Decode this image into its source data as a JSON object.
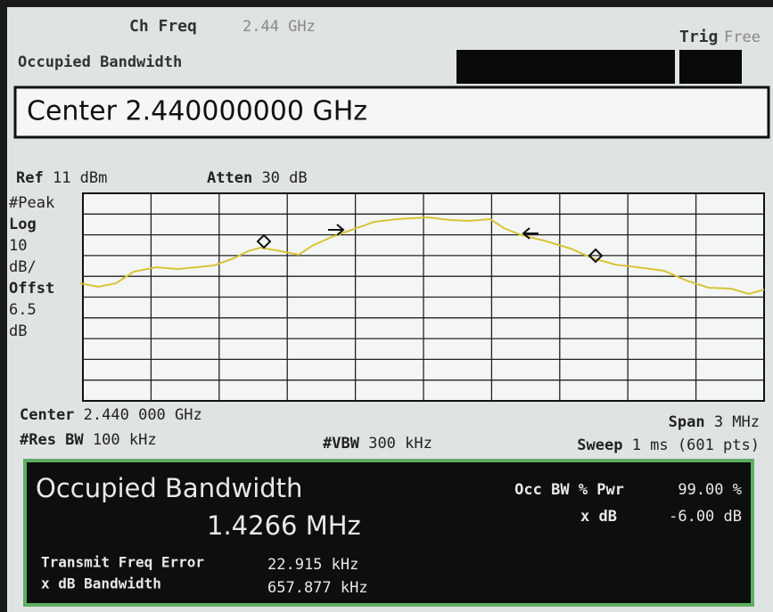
{
  "header": {
    "ch_freq_label": "Ch Freq",
    "ch_freq_value": "2.44 GHz",
    "mode": "Occupied Bandwidth",
    "trig_label": "Trig",
    "trig_value": "Free"
  },
  "center_line": "Center 2.440000000 GHz",
  "display": {
    "ref_label": "Ref",
    "ref_value": "11 dBm",
    "atten_label": "Atten",
    "atten_value": "30 dB",
    "side_labels": [
      "#Peak",
      "Log",
      "10",
      "dB/",
      "Offst",
      "6.5",
      "dB"
    ]
  },
  "footer": {
    "center_label": "Center",
    "center_value": "2.440 000 GHz",
    "span_label": "Span",
    "span_value": "3 MHz",
    "res_bw_label": "#Res BW",
    "res_bw_value": "100 kHz",
    "vbw_label": "#VBW",
    "vbw_value": "300 kHz",
    "sweep_label": "Sweep",
    "sweep_value": "1 ms (601 pts)"
  },
  "results": {
    "title": "Occupied Bandwidth",
    "value": "1.4266 MHz",
    "occ_bw_pwr_label": "Occ BW % Pwr",
    "occ_bw_pwr_value": "99.00 %",
    "x_db_label": "x dB",
    "x_db_value": "-6.00 dB",
    "freq_error_label": "Transmit Freq Error",
    "freq_error_value": "22.915 kHz",
    "x_db_bw_label": "x dB Bandwidth",
    "x_db_bw_value": "657.877 kHz"
  }
}
